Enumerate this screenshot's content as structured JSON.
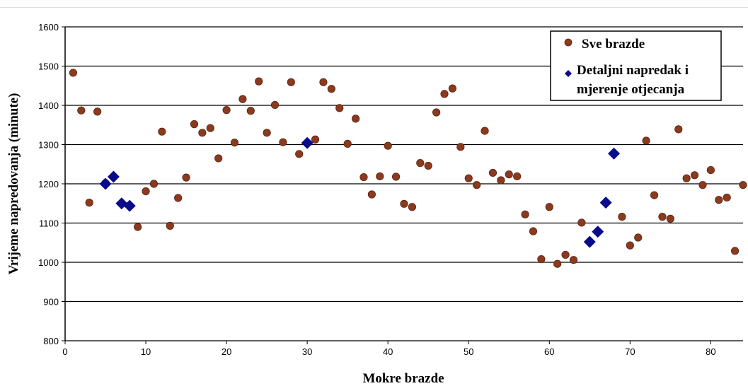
{
  "chart_data": {
    "type": "scatter",
    "xlabel": "Mokre brazde",
    "ylabel": "Vrijeme napredovanja (minute)",
    "xlim": [
      0,
      84
    ],
    "ylim": [
      800,
      1600
    ],
    "x_ticks": [
      0,
      10,
      20,
      30,
      40,
      50,
      60,
      70,
      80
    ],
    "y_ticks": [
      800,
      900,
      1000,
      1100,
      1200,
      1300,
      1400,
      1500,
      1600
    ],
    "grid": "horizontal",
    "legend_position": "top-right",
    "series": [
      {
        "name": "Sve brazde",
        "color": "#8b3a1e",
        "marker": "circle",
        "points": [
          [
            1,
            1483
          ],
          [
            2,
            1387
          ],
          [
            3,
            1152
          ],
          [
            4,
            1384
          ],
          [
            5,
            1202
          ],
          [
            9,
            1090
          ],
          [
            10,
            1181
          ],
          [
            11,
            1200
          ],
          [
            12,
            1333
          ],
          [
            13,
            1093
          ],
          [
            14,
            1164
          ],
          [
            15,
            1216
          ],
          [
            16,
            1352
          ],
          [
            17,
            1330
          ],
          [
            18,
            1342
          ],
          [
            19,
            1265
          ],
          [
            20,
            1388
          ],
          [
            21,
            1305
          ],
          [
            22,
            1416
          ],
          [
            23,
            1386
          ],
          [
            24,
            1461
          ],
          [
            25,
            1330
          ],
          [
            26,
            1401
          ],
          [
            27,
            1306
          ],
          [
            28,
            1459
          ],
          [
            29,
            1276
          ],
          [
            31,
            1313
          ],
          [
            32,
            1459
          ],
          [
            33,
            1442
          ],
          [
            34,
            1393
          ],
          [
            35,
            1302
          ],
          [
            36,
            1366
          ],
          [
            37,
            1217
          ],
          [
            38,
            1173
          ],
          [
            39,
            1219
          ],
          [
            40,
            1297
          ],
          [
            41,
            1218
          ],
          [
            42,
            1149
          ],
          [
            43,
            1141
          ],
          [
            44,
            1253
          ],
          [
            45,
            1246
          ],
          [
            46,
            1382
          ],
          [
            47,
            1429
          ],
          [
            48,
            1443
          ],
          [
            49,
            1294
          ],
          [
            50,
            1214
          ],
          [
            51,
            1197
          ],
          [
            52,
            1335
          ],
          [
            53,
            1228
          ],
          [
            54,
            1209
          ],
          [
            55,
            1224
          ],
          [
            56,
            1219
          ],
          [
            57,
            1122
          ],
          [
            58,
            1079
          ],
          [
            59,
            1008
          ],
          [
            60,
            1141
          ],
          [
            61,
            996
          ],
          [
            62,
            1019
          ],
          [
            63,
            1006
          ],
          [
            64,
            1101
          ],
          [
            69,
            1116
          ],
          [
            70,
            1043
          ],
          [
            71,
            1063
          ],
          [
            72,
            1310
          ],
          [
            73,
            1171
          ],
          [
            74,
            1116
          ],
          [
            75,
            1111
          ],
          [
            76,
            1339
          ],
          [
            77,
            1214
          ],
          [
            78,
            1222
          ],
          [
            79,
            1197
          ],
          [
            80,
            1235
          ],
          [
            81,
            1159
          ],
          [
            82,
            1165
          ],
          [
            83,
            1029
          ],
          [
            84,
            1197
          ]
        ]
      },
      {
        "name": "Detaljni napredak i mjerenje otjecanja",
        "color": "#0a0a8c",
        "marker": "diamond",
        "points": [
          [
            5,
            1200
          ],
          [
            6,
            1218
          ],
          [
            7,
            1150
          ],
          [
            8,
            1144
          ],
          [
            30,
            1304
          ],
          [
            65,
            1052
          ],
          [
            66,
            1078
          ],
          [
            67,
            1152
          ],
          [
            68,
            1277
          ]
        ]
      }
    ]
  }
}
